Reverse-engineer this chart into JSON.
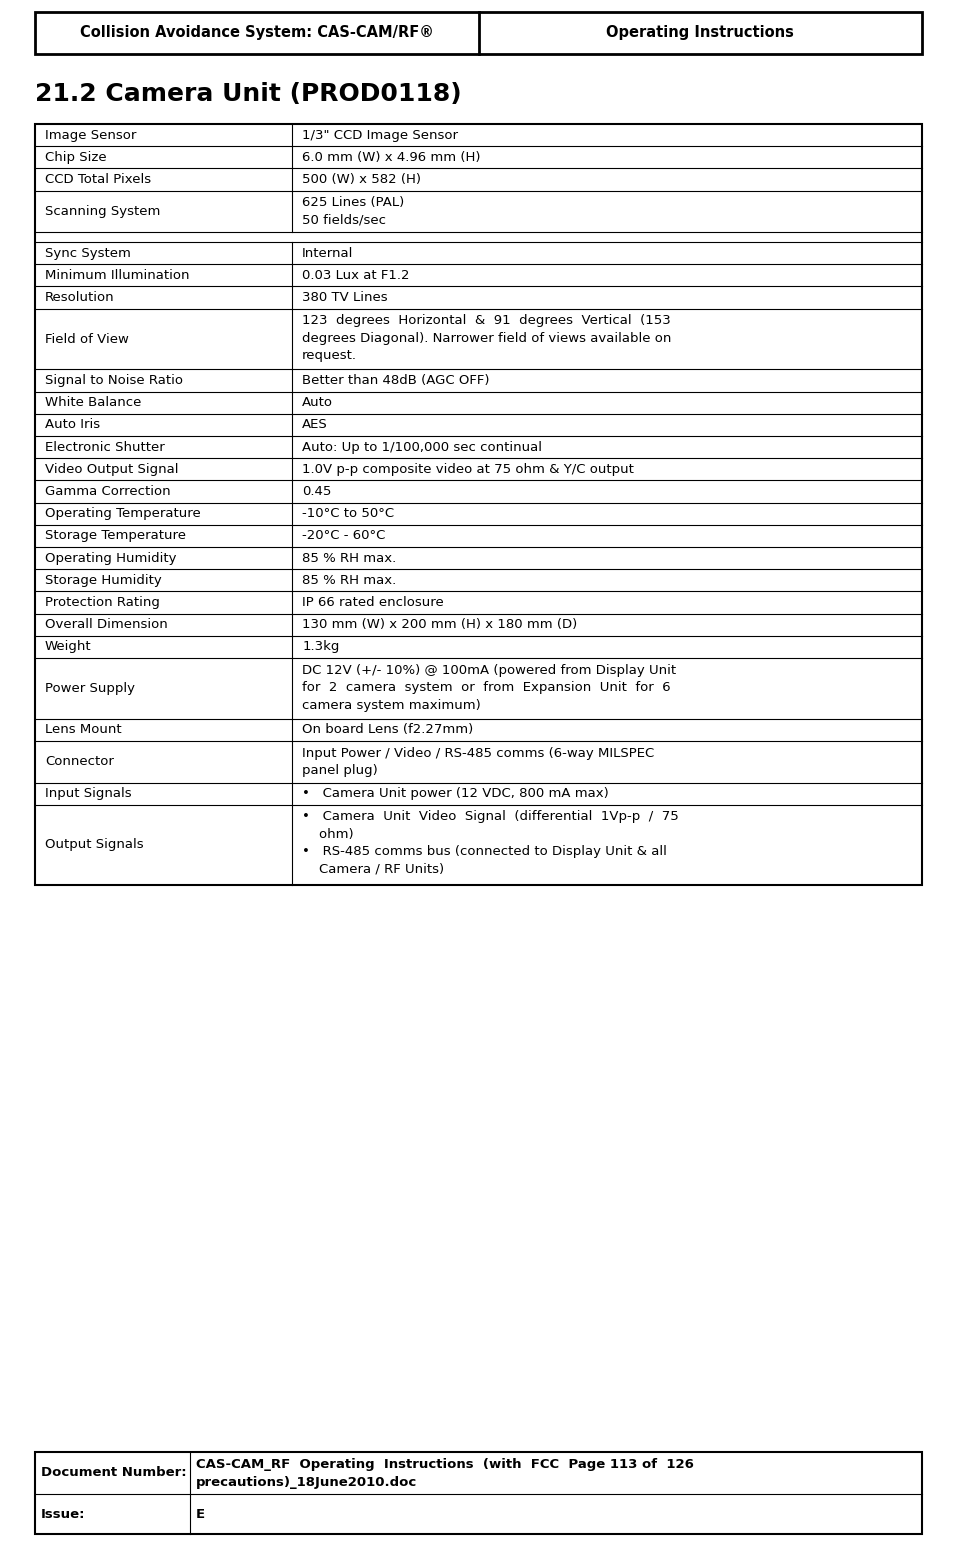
{
  "header_left": "Collision Avoidance System: CAS-CAM/RF®",
  "header_right": "Operating Instructions",
  "section_title": "21.2 Camera Unit (PROD0118)",
  "col_split": 0.29,
  "rows": [
    {
      "label": "Image Sensor",
      "value": "1/3\" CCD Image Sensor",
      "gap_after": false
    },
    {
      "label": "Chip Size",
      "value": "6.0 mm (W) x 4.96 mm (H)",
      "gap_after": false
    },
    {
      "label": "CCD Total Pixels",
      "value": "500 (W) x 582 (H)",
      "gap_after": false
    },
    {
      "label": "Scanning System",
      "value": "625 Lines (PAL)\n50 fields/sec",
      "gap_after": true
    },
    {
      "label": "Sync System",
      "value": "Internal",
      "gap_after": false
    },
    {
      "label": "Minimum Illumination",
      "value": "0.03 Lux at F1.2",
      "gap_after": false
    },
    {
      "label": "Resolution",
      "value": "380 TV Lines",
      "gap_after": false
    },
    {
      "label": "Field of View",
      "value": "123  degrees  Horizontal  &  91  degrees  Vertical  (153\ndegrees Diagonal). Narrower field of views available on\nrequest.",
      "gap_after": false
    },
    {
      "label": "Signal to Noise Ratio",
      "value": "Better than 48dB (AGC OFF)",
      "gap_after": false
    },
    {
      "label": "White Balance",
      "value": "Auto",
      "gap_after": false
    },
    {
      "label": "Auto Iris",
      "value": "AES",
      "gap_after": false
    },
    {
      "label": "Electronic Shutter",
      "value": "Auto: Up to 1/100,000 sec continual",
      "gap_after": false
    },
    {
      "label": "Video Output Signal",
      "value": "1.0V p-p composite video at 75 ohm & Υ/C output",
      "gap_after": false
    },
    {
      "label": "Gamma Correction",
      "value": "0.45",
      "gap_after": false
    },
    {
      "label": "Operating Temperature",
      "value": "-10°C to 50°C",
      "gap_after": false
    },
    {
      "label": "Storage Temperature",
      "value": "-20°C - 60°C",
      "gap_after": false
    },
    {
      "label": "Operating Humidity",
      "value": "85 % RH max.",
      "gap_after": false
    },
    {
      "label": "Storage Humidity",
      "value": "85 % RH max.",
      "gap_after": false
    },
    {
      "label": "Protection Rating",
      "value": "IP 66 rated enclosure",
      "gap_after": false
    },
    {
      "label": "Overall Dimension",
      "value": "130 mm (W) x 200 mm (H) x 180 mm (D)",
      "gap_after": false
    },
    {
      "label": "Weight",
      "value": "1.3kg",
      "gap_after": false
    },
    {
      "label": "Power Supply",
      "value": "DC 12V (+/- 10%) @ 100mA (powered from Display Unit\nfor  2  camera  system  or  from  Expansion  Unit  for  6\ncamera system maximum)",
      "gap_after": false
    },
    {
      "label": "Lens Mount",
      "value": "On board Lens (f2.27mm)",
      "gap_after": false
    },
    {
      "label": "Connector",
      "value": "Input Power / Video / RS-485 comms (6-way MILSPEC\npanel plug)",
      "gap_after": false
    },
    {
      "label": "Input Signals",
      "value": "•   Camera Unit power (12 VDC, 800 mA max)",
      "gap_after": false
    },
    {
      "label": "Output Signals",
      "value": "•   Camera  Unit  Video  Signal  (differential  1Vp-p  /  75\n    ohm)\n•   RS-485 comms bus (connected to Display Unit & all\n    Camera / RF Units)",
      "gap_after": false
    }
  ],
  "footer_label1": "Document Number:",
  "footer_value1": "CAS-CAM_RF  Operating  Instructions  (with  FCC  Page 113 of  126\nprecautions)_18June2010.doc",
  "footer_label2": "Issue:",
  "footer_value2": "E",
  "bg_color": "#ffffff",
  "text_color": "#000000",
  "border_color": "#000000",
  "header_font_size": 10.5,
  "title_font_size": 18,
  "body_font_size": 9.5,
  "footer_font_size": 9.5
}
